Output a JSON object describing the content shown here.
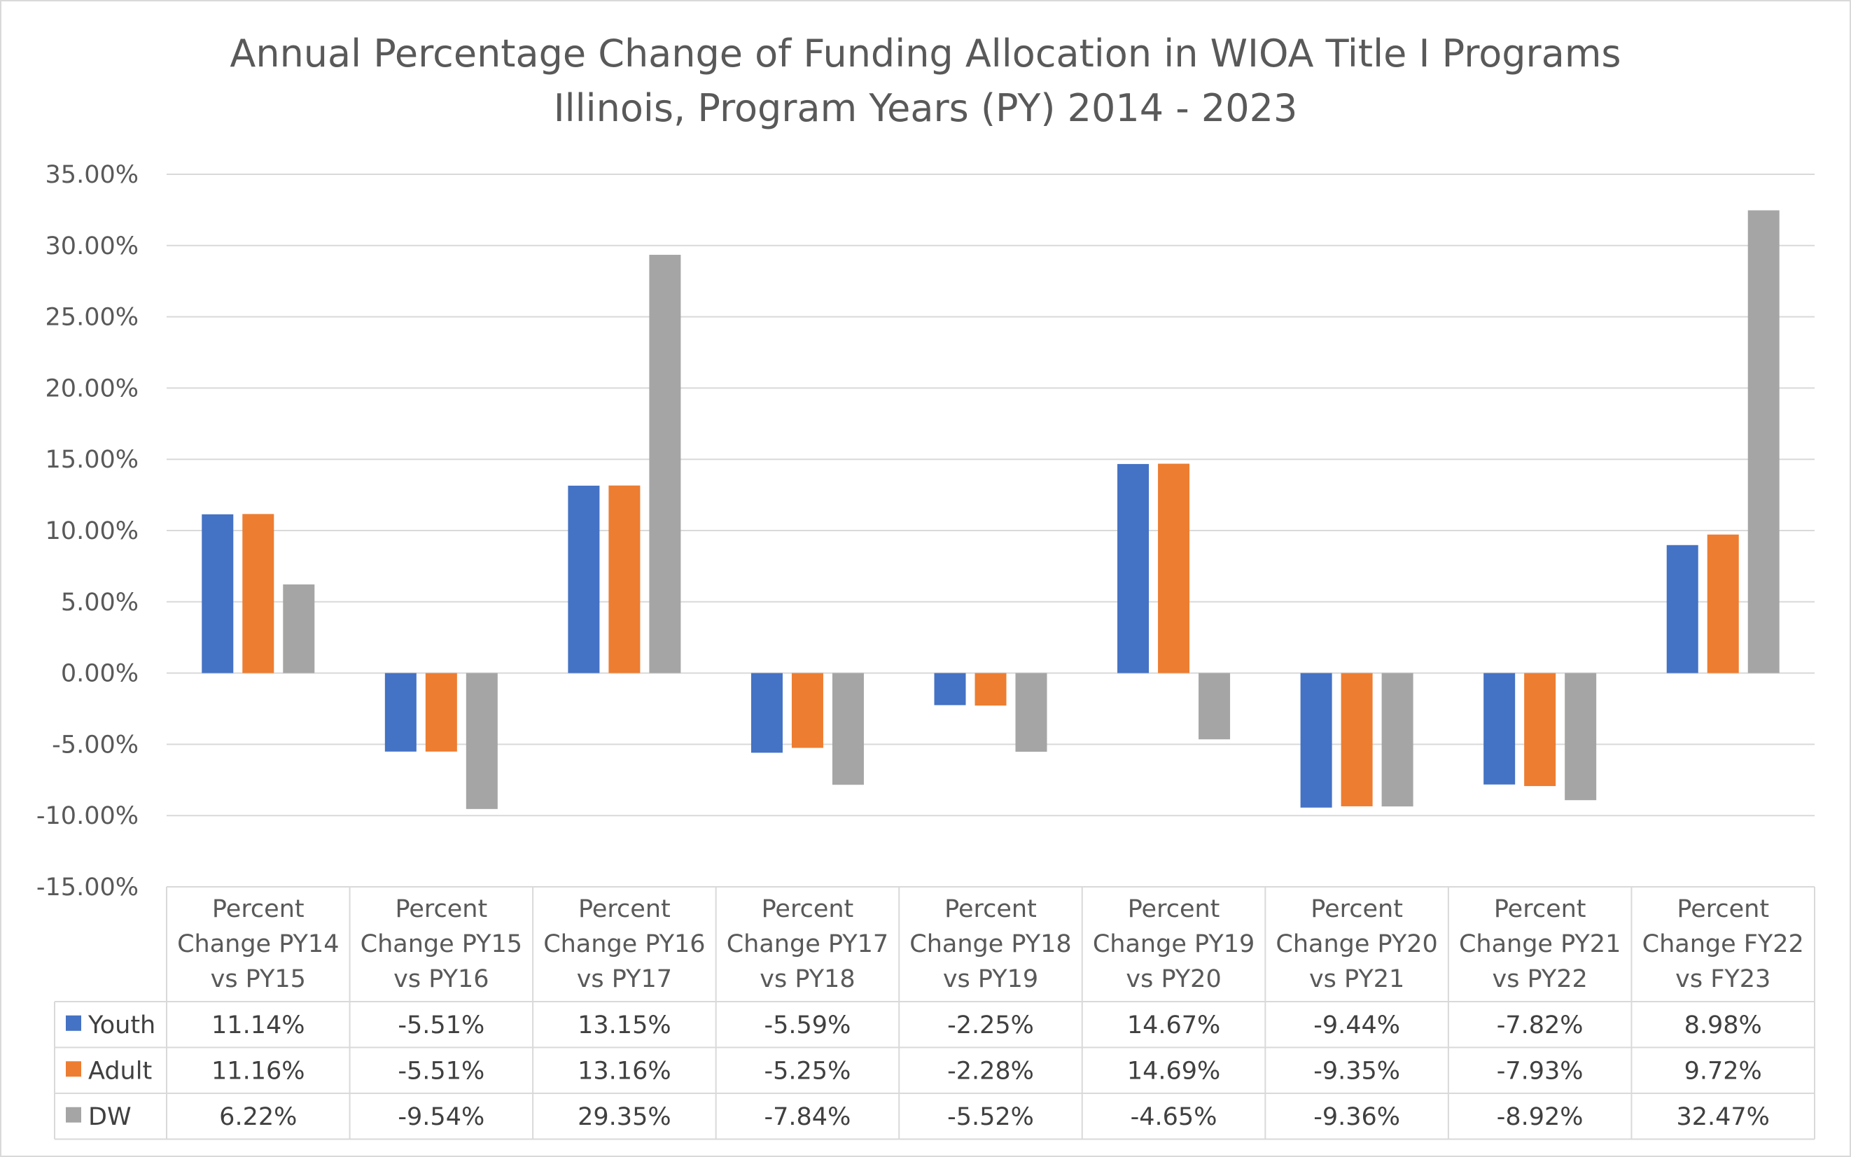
{
  "chart_data": {
    "type": "bar",
    "title": "Annual Percentage Change of Funding Allocation in WIOA Title I Programs",
    "subtitle": "Illinois, Program Years (PY) 2014 - 2023",
    "categories": [
      [
        "Percent",
        "Change PY14",
        "vs PY15"
      ],
      [
        "Percent",
        "Change PY15",
        "vs PY16"
      ],
      [
        "Percent",
        "Change PY16",
        "vs PY17"
      ],
      [
        "Percent",
        "Change PY17",
        "vs PY18"
      ],
      [
        "Percent",
        "Change PY18",
        "vs PY19"
      ],
      [
        "Percent",
        "Change PY19",
        "vs PY20"
      ],
      [
        "Percent",
        "Change PY20",
        "vs PY21"
      ],
      [
        "Percent",
        "Change PY21",
        "vs PY22"
      ],
      [
        "Percent",
        "Change FY22",
        "vs FY23"
      ]
    ],
    "series": [
      {
        "name": "Youth",
        "color": "#4472c4",
        "values": [
          11.14,
          -5.51,
          13.15,
          -5.59,
          -2.25,
          14.67,
          -9.44,
          -7.82,
          8.98
        ],
        "labels": [
          "11.14%",
          "-5.51%",
          "13.15%",
          "-5.59%",
          "-2.25%",
          "14.67%",
          "-9.44%",
          "-7.82%",
          "8.98%"
        ]
      },
      {
        "name": "Adult",
        "color": "#ed7d31",
        "values": [
          11.16,
          -5.51,
          13.16,
          -5.25,
          -2.28,
          14.69,
          -9.35,
          -7.93,
          9.72
        ],
        "labels": [
          "11.16%",
          "-5.51%",
          "13.16%",
          "-5.25%",
          "-2.28%",
          "14.69%",
          "-9.35%",
          "-7.93%",
          "9.72%"
        ]
      },
      {
        "name": "DW",
        "color": "#a5a5a5",
        "values": [
          6.22,
          -9.54,
          29.35,
          -7.84,
          -5.52,
          -4.65,
          -9.36,
          -8.92,
          32.47
        ],
        "labels": [
          "6.22%",
          "-9.54%",
          "29.35%",
          "-7.84%",
          "-5.52%",
          "-4.65%",
          "-9.36%",
          "-8.92%",
          "32.47%"
        ]
      }
    ],
    "ylim": [
      -15,
      35
    ],
    "yticks": [
      35,
      30,
      25,
      20,
      15,
      10,
      5,
      0,
      -5,
      -10,
      -15
    ],
    "ytick_labels": [
      "35.00%",
      "30.00%",
      "25.00%",
      "20.00%",
      "15.00%",
      "10.00%",
      "5.00%",
      "0.00%",
      "-5.00%",
      "-10.00%",
      "-15.00%"
    ],
    "grid": true,
    "legend": "data-table-below"
  }
}
